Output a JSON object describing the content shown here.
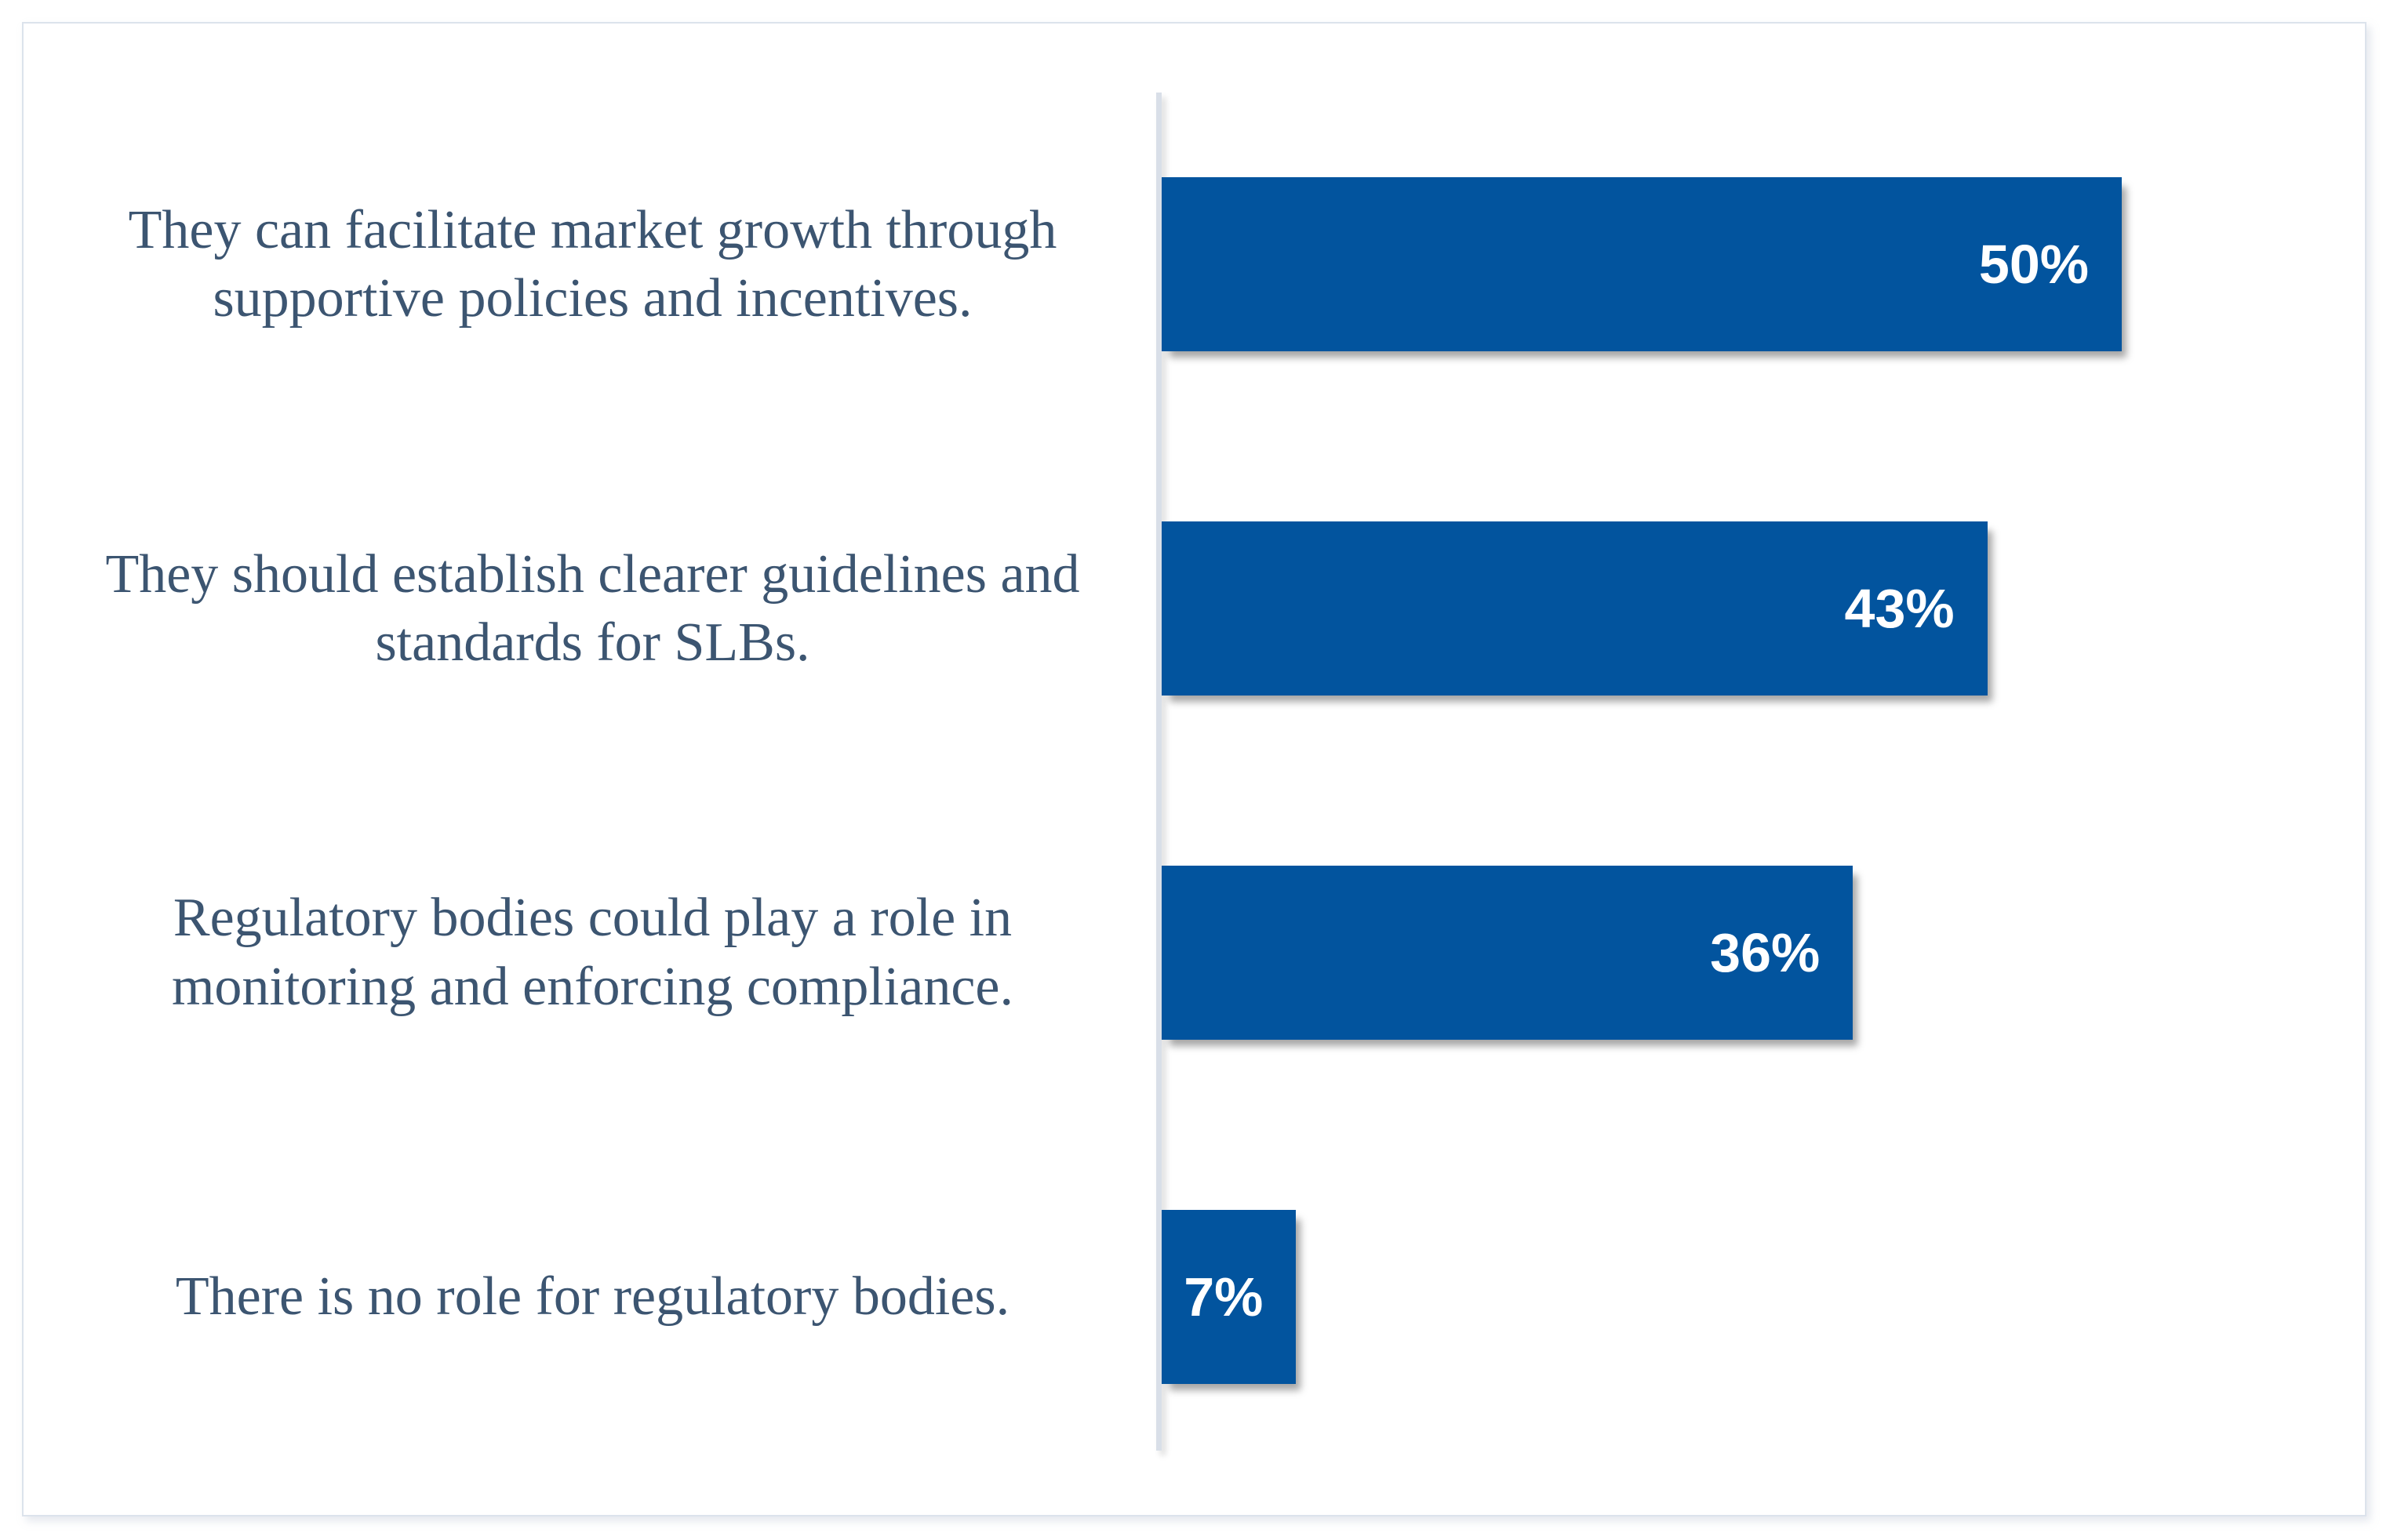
{
  "chart_data": {
    "type": "bar",
    "orientation": "horizontal",
    "title": "",
    "xlabel": "",
    "ylabel": "",
    "xlim": [
      0,
      61
    ],
    "grid": false,
    "legend": false,
    "bar_color": "#02549E",
    "category_label_color": "#3C5571",
    "value_label_color": "#FFFFFF",
    "axis_line_color": "#D9DFE8",
    "card_border_color": "#DCE3EC",
    "categories": [
      "They can facilitate market growth through supportive policies and incentives.",
      "They should establish clearer guidelines and standards for SLBs.",
      "Regulatory bodies could play a role in monitoring and enforcing compliance.",
      "There is no role for regulatory bodies."
    ],
    "values": [
      50,
      43,
      36,
      7
    ],
    "rows": [
      {
        "label": "They can facilitate market growth through\nsupportive policies and incentives.",
        "value": 50,
        "value_label": "50%"
      },
      {
        "label": "They should establish clearer guidelines and\nstandards for SLBs.",
        "value": 43,
        "value_label": "43%"
      },
      {
        "label": "Regulatory bodies could play a role in\nmonitoring and enforcing compliance.",
        "value": 36,
        "value_label": "36%"
      },
      {
        "label": "There is no role for regulatory bodies.",
        "value": 7,
        "value_label": "7%"
      }
    ]
  }
}
